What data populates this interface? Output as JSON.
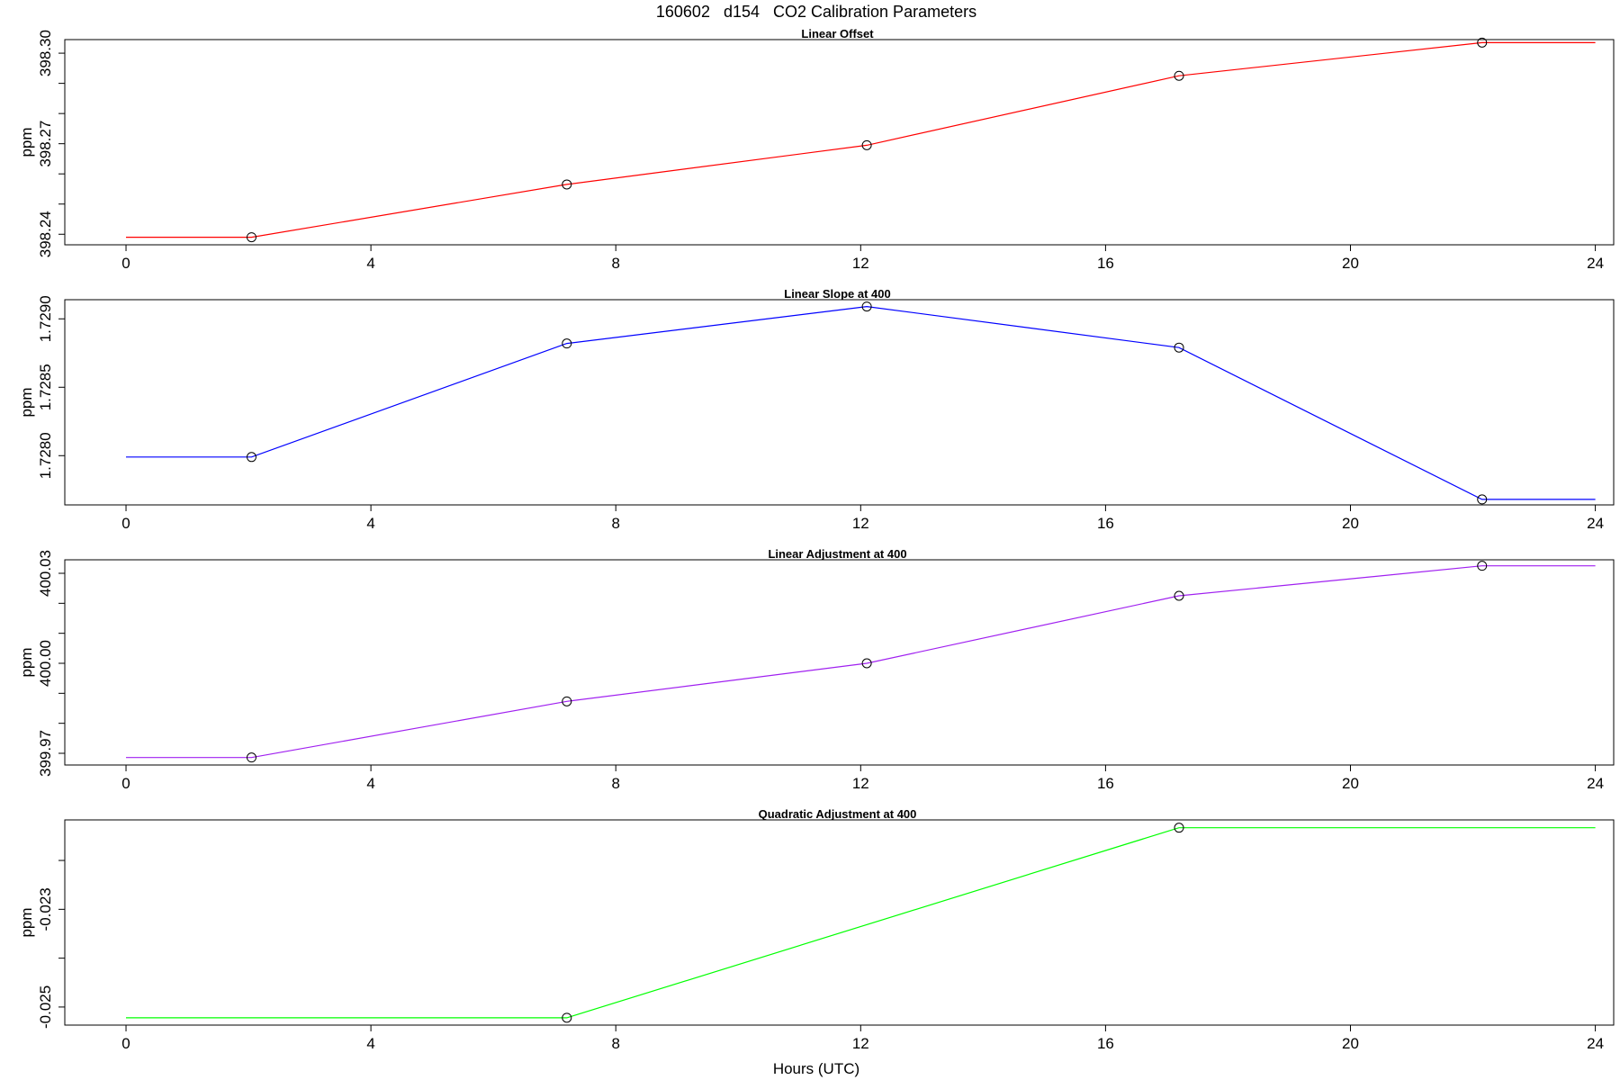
{
  "title": "160602   d154   CO2 Calibration Parameters",
  "xlabel": "Hours (UTC)",
  "chart_data": [
    {
      "type": "line",
      "title": "Linear Offset",
      "ylabel": "ppm",
      "xlabel": "",
      "xlim": [
        -1,
        24.3
      ],
      "ylim": [
        398.2365,
        398.3045
      ],
      "xticks": [
        0,
        4,
        8,
        12,
        16,
        20,
        24
      ],
      "yticks": [
        398.24,
        398.25,
        398.26,
        398.27,
        398.28,
        398.29,
        398.3
      ],
      "ytick_labels": [
        {
          "value": 398.24,
          "label": "398.24"
        },
        {
          "value": 398.27,
          "label": "398.27"
        },
        {
          "value": 398.3,
          "label": "398.30"
        }
      ],
      "color": "#ff0000",
      "x": [
        0,
        2.05,
        7.2,
        12.1,
        17.2,
        22.15,
        24
      ],
      "values": [
        398.239,
        398.239,
        398.2565,
        398.2695,
        398.2925,
        398.3035,
        398.3035
      ],
      "markers": [
        1,
        2,
        3,
        4,
        5
      ],
      "grid": false
    },
    {
      "type": "line",
      "title": "Linear Slope at 400",
      "ylabel": "ppm",
      "xlabel": "",
      "xlim": [
        -1,
        24.3
      ],
      "ylim": [
        1.72764,
        1.72914
      ],
      "xticks": [
        0,
        4,
        8,
        12,
        16,
        20,
        24
      ],
      "yticks": [
        1.728,
        1.7285,
        1.729
      ],
      "ytick_labels": [
        {
          "value": 1.728,
          "label": "1.7280"
        },
        {
          "value": 1.7285,
          "label": "1.7285"
        },
        {
          "value": 1.729,
          "label": "1.7290"
        }
      ],
      "color": "#0000ff",
      "x": [
        0,
        2.05,
        7.2,
        12.1,
        17.2,
        22.15,
        24
      ],
      "values": [
        1.72799,
        1.72799,
        1.72882,
        1.72909,
        1.72879,
        1.72768,
        1.72768
      ],
      "markers": [
        1,
        2,
        3,
        4,
        5
      ],
      "grid": false
    },
    {
      "type": "line",
      "title": "Linear Adjustment at 400",
      "ylabel": "ppm",
      "xlabel": "",
      "xlim": [
        -1,
        24.3
      ],
      "ylim": [
        399.9661,
        400.0345
      ],
      "xticks": [
        0,
        4,
        8,
        12,
        16,
        20,
        24
      ],
      "yticks": [
        399.97,
        399.98,
        399.99,
        400.0,
        400.01,
        400.02,
        400.03
      ],
      "ytick_labels": [
        {
          "value": 399.97,
          "label": "399.97"
        },
        {
          "value": 400.0,
          "label": "400.00"
        },
        {
          "value": 400.03,
          "label": "400.03"
        }
      ],
      "color": "#a020f0",
      "x": [
        0,
        2.05,
        7.2,
        12.1,
        17.2,
        22.15,
        24
      ],
      "values": [
        399.9686,
        399.9686,
        399.9873,
        400.0,
        400.0225,
        400.0325,
        400.0325
      ],
      "markers": [
        1,
        2,
        3,
        4,
        5
      ],
      "grid": false
    },
    {
      "type": "line",
      "title": "Quadratic Adjustment at 400",
      "ylabel": "ppm",
      "xlabel": "Hours (UTC)",
      "xlim": [
        -1,
        24.3
      ],
      "ylim": [
        -0.02537,
        -0.02117
      ],
      "xticks": [
        0,
        4,
        8,
        12,
        16,
        20,
        24
      ],
      "yticks": [
        -0.025,
        -0.024,
        -0.023,
        -0.022
      ],
      "ytick_labels": [
        {
          "value": -0.025,
          "label": "-0.025"
        },
        {
          "value": -0.023,
          "label": "-0.023"
        }
      ],
      "color": "#00ff00",
      "x": [
        0,
        7.2,
        17.2,
        24
      ],
      "values": [
        -0.02522,
        -0.02522,
        -0.02133,
        -0.02133
      ],
      "markers": [
        1,
        2
      ],
      "grid": false
    }
  ]
}
